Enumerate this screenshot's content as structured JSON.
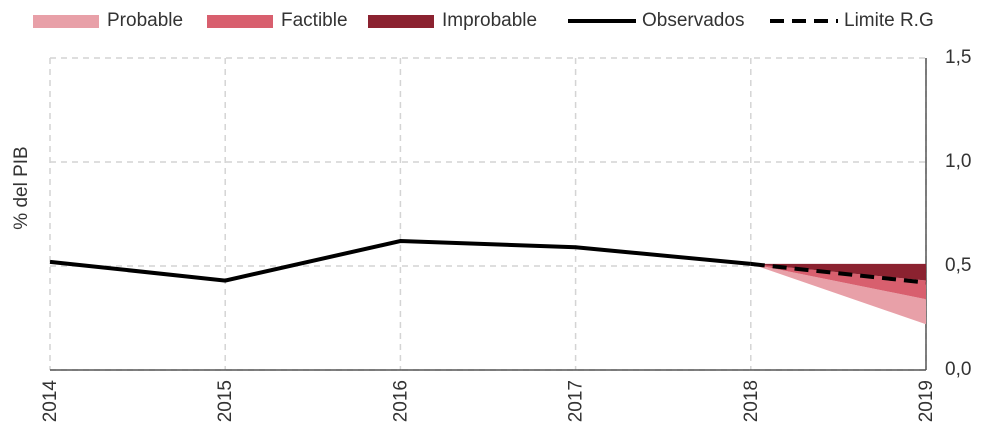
{
  "chart_data": {
    "type": "fan",
    "y_label": "% del PIB",
    "xlim": [
      2014,
      2019
    ],
    "xticks": [
      2014,
      2015,
      2016,
      2017,
      2018,
      2019
    ],
    "ylim": [
      0,
      1.5
    ],
    "yticks": [
      {
        "value": 0,
        "label": "0,0"
      },
      {
        "value": 0.5,
        "label": "0,5"
      },
      {
        "value": 1,
        "label": "1,0"
      },
      {
        "value": 1.5,
        "label": "1,5"
      }
    ],
    "grid": true,
    "legend": "top",
    "series": [
      {
        "name": "Probable",
        "color": "#e8a0a8",
        "x": [
          2018,
          2019
        ],
        "lower": [
          0.51,
          0.22
        ],
        "upper": [
          0.51,
          0.34
        ]
      },
      {
        "name": "Factible",
        "color": "#d85f6e",
        "x": [
          2018,
          2019
        ],
        "lower": [
          0.51,
          0.34
        ],
        "upper": [
          0.51,
          0.43
        ]
      },
      {
        "name": "Improbable",
        "color": "#8b2230",
        "x": [
          2018,
          2019
        ],
        "lower": [
          0.51,
          0.43
        ],
        "upper": [
          0.51,
          0.51
        ]
      },
      {
        "name": "Observados",
        "color": "#000000",
        "x": [
          2014,
          2015,
          2016,
          2017,
          2018
        ],
        "values": [
          0.52,
          0.43,
          0.62,
          0.59,
          0.51
        ]
      },
      {
        "name": "Limite R.G",
        "color": "#000000",
        "dash": true,
        "x": [
          2018,
          2019
        ],
        "values": [
          0.51,
          0.42
        ]
      }
    ]
  }
}
